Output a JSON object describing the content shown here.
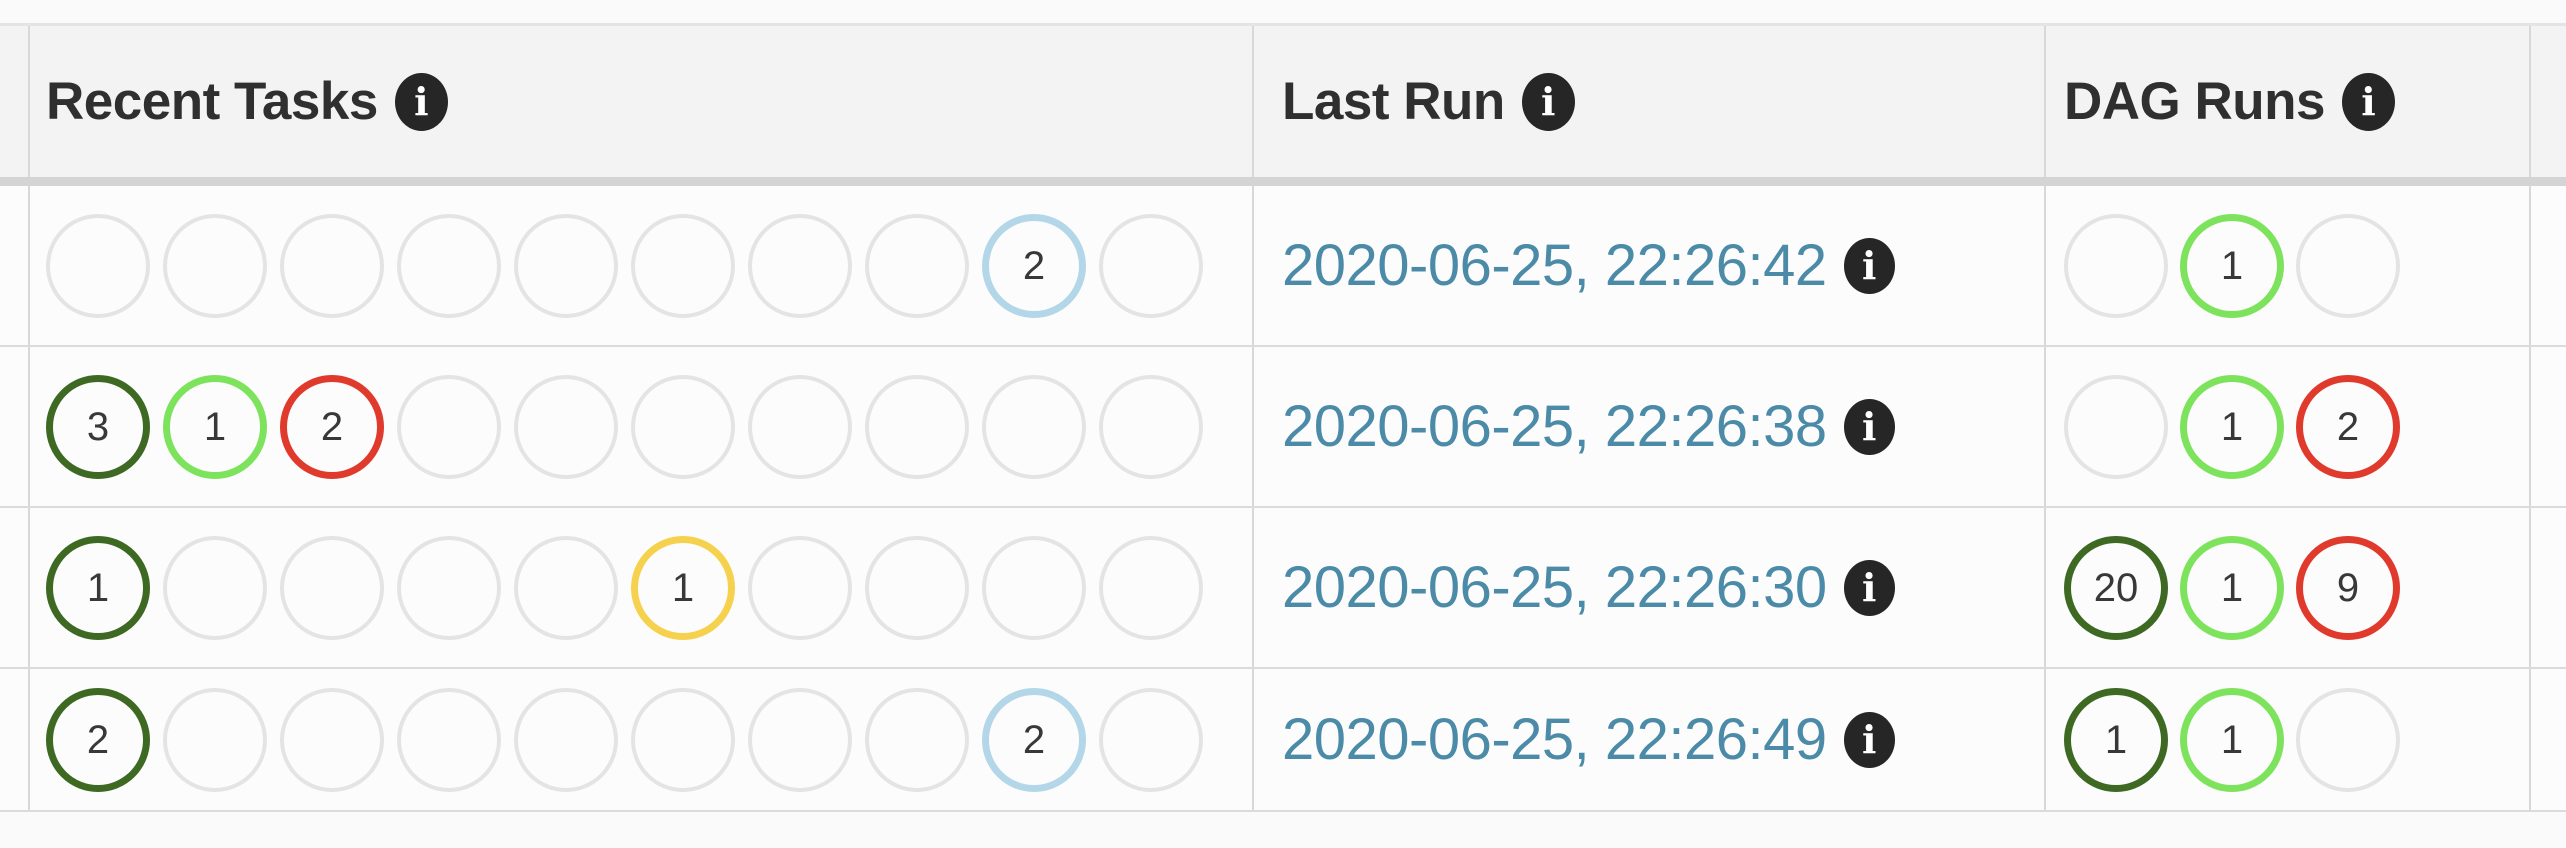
{
  "columns": [
    {
      "label": "Recent Tasks"
    },
    {
      "label": "Last Run"
    },
    {
      "label": "DAG Runs"
    }
  ],
  "icons": {
    "info_glyph": "i"
  },
  "link_color": "#4b8ba8",
  "circle_colors": {
    "dark_green": "#3d6923",
    "lime_green": "#7ee35c",
    "red": "#df3a2c",
    "gold": "#f6d14e",
    "light_blue": "#b3d7e8",
    "empty": "#e4e4e4"
  },
  "recent_tasks_circle_count": 10,
  "dag_runs_circle_count": 3,
  "rows": [
    {
      "recent_tasks": [
        null,
        null,
        null,
        null,
        null,
        null,
        null,
        null,
        {
          "count": "2",
          "color": "light_blue"
        },
        null
      ],
      "last_run": "2020-06-25, 22:26:42",
      "dag_runs": [
        null,
        {
          "count": "1",
          "color": "lime_green"
        },
        null
      ]
    },
    {
      "recent_tasks": [
        {
          "count": "3",
          "color": "dark_green"
        },
        {
          "count": "1",
          "color": "lime_green"
        },
        {
          "count": "2",
          "color": "red"
        },
        null,
        null,
        null,
        null,
        null,
        null,
        null
      ],
      "last_run": "2020-06-25, 22:26:38",
      "dag_runs": [
        null,
        {
          "count": "1",
          "color": "lime_green"
        },
        {
          "count": "2",
          "color": "red"
        }
      ]
    },
    {
      "recent_tasks": [
        {
          "count": "1",
          "color": "dark_green"
        },
        null,
        null,
        null,
        null,
        {
          "count": "1",
          "color": "gold"
        },
        null,
        null,
        null,
        null
      ],
      "last_run": "2020-06-25, 22:26:30",
      "dag_runs": [
        {
          "count": "20",
          "color": "dark_green"
        },
        {
          "count": "1",
          "color": "lime_green"
        },
        {
          "count": "9",
          "color": "red"
        }
      ]
    },
    {
      "recent_tasks": [
        {
          "count": "2",
          "color": "dark_green"
        },
        null,
        null,
        null,
        null,
        null,
        null,
        null,
        {
          "count": "2",
          "color": "light_blue"
        },
        null
      ],
      "last_run": "2020-06-25, 22:26:49",
      "dag_runs": [
        {
          "count": "1",
          "color": "dark_green"
        },
        {
          "count": "1",
          "color": "lime_green"
        },
        null
      ]
    }
  ]
}
